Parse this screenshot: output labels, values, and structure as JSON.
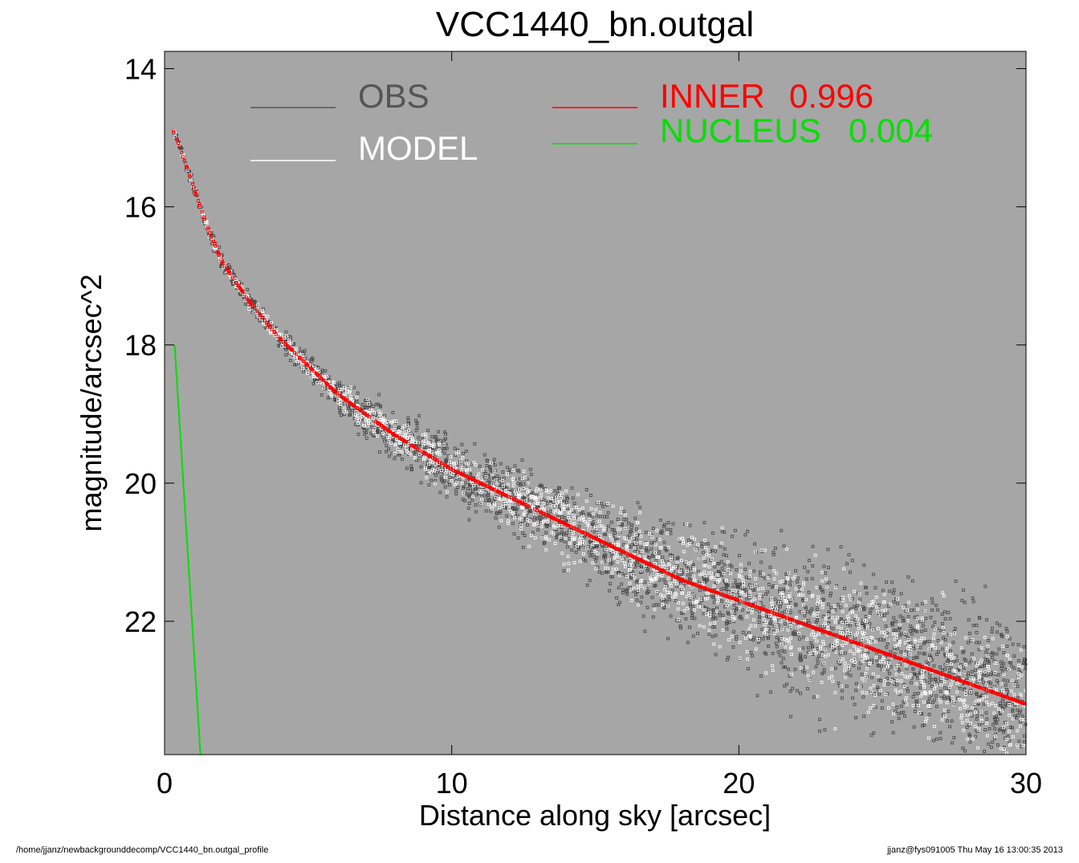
{
  "chart_data": {
    "type": "scatter",
    "title": "VCC1440_bn.outgal",
    "xlabel": "Distance along sky [arcsec]",
    "ylabel": "magnitude/arcsec^2",
    "xlim": [
      0,
      30
    ],
    "ylim": [
      24,
      13.8
    ],
    "y_inverted": true,
    "x_ticks": [
      "0",
      "10",
      "20",
      "30"
    ],
    "y_ticks": [
      "14",
      "16",
      "18",
      "20",
      "22"
    ],
    "background": "#a6a6a6",
    "legend": {
      "placement": "top",
      "entries": [
        {
          "label": "OBS",
          "color": "#555555"
        },
        {
          "label": "MODEL",
          "color": "#ffffff"
        },
        {
          "label": "INNER",
          "value": "0.996",
          "color": "#ff0000"
        },
        {
          "label": "NUCLEUS",
          "value": "0.004",
          "color": "#00e000"
        }
      ]
    },
    "series": [
      {
        "name": "OBS",
        "color": "#444444",
        "marker": "open-square",
        "x": [
          0.3,
          0.5,
          1.0,
          1.5,
          2.0,
          3.0,
          4.0,
          5.0,
          6.0,
          7.0,
          8.0,
          10.0,
          12.0,
          14.0,
          16.0,
          18.0,
          20.0,
          22.0,
          24.0,
          26.0,
          28.0,
          30.0
        ],
        "y": [
          14.9,
          15.1,
          15.7,
          16.3,
          16.8,
          17.4,
          17.9,
          18.3,
          18.7,
          19.0,
          19.3,
          19.8,
          20.2,
          20.6,
          21.0,
          21.4,
          21.7,
          22.0,
          22.3,
          22.6,
          22.9,
          23.2
        ],
        "scatter_mag": [
          0.05,
          0.05,
          0.08,
          0.1,
          0.12,
          0.12,
          0.15,
          0.18,
          0.25,
          0.3,
          0.35,
          0.4,
          0.45,
          0.55,
          0.65,
          0.8,
          0.9,
          1.0,
          1.05,
          1.1,
          1.15,
          1.2
        ]
      },
      {
        "name": "MODEL",
        "color": "#ffffff",
        "marker": "open-square",
        "x": [
          0.3,
          0.5,
          1.0,
          1.5,
          2.0,
          3.0,
          4.0,
          5.0,
          6.0,
          7.0,
          8.0,
          10.0,
          12.0,
          14.0,
          16.0,
          18.0,
          20.0,
          22.0,
          24.0,
          26.0,
          28.0,
          30.0
        ],
        "y": [
          14.9,
          15.1,
          15.7,
          16.3,
          16.8,
          17.4,
          17.9,
          18.3,
          18.7,
          19.0,
          19.3,
          19.8,
          20.2,
          20.6,
          21.0,
          21.4,
          21.7,
          22.0,
          22.3,
          22.6,
          22.9,
          23.2
        ],
        "scatter_mag": [
          0.04,
          0.04,
          0.05,
          0.06,
          0.07,
          0.08,
          0.1,
          0.12,
          0.15,
          0.2,
          0.25,
          0.3,
          0.35,
          0.45,
          0.55,
          0.65,
          0.75,
          0.85,
          0.9,
          0.95,
          1.0,
          1.05
        ]
      },
      {
        "name": "INNER",
        "color": "#ff0000",
        "marker": "open-square",
        "x": [
          0.3,
          0.5,
          1.0,
          1.5,
          2.0,
          3.0,
          4.0,
          5.0,
          6.0,
          7.0,
          8.0,
          10.0,
          12.0,
          14.0,
          16.0,
          18.0,
          20.0,
          22.0,
          24.0,
          26.0,
          28.0,
          30.0
        ],
        "y": [
          14.9,
          15.1,
          15.7,
          16.3,
          16.8,
          17.4,
          17.9,
          18.3,
          18.7,
          19.0,
          19.3,
          19.8,
          20.2,
          20.6,
          21.0,
          21.4,
          21.7,
          22.0,
          22.3,
          22.6,
          22.9,
          23.2
        ]
      },
      {
        "name": "NUCLEUS",
        "color": "#00e000",
        "marker": "line",
        "x": [
          0.35,
          1.25
        ],
        "y": [
          18.0,
          24.0
        ]
      }
    ]
  },
  "footer": {
    "left": "/home/jjanz/newbackgrounddecomp/VCC1440_bn.outgal_profile",
    "right": "jjanz@fys091005  Thu May 16 13:00:35 2013"
  }
}
